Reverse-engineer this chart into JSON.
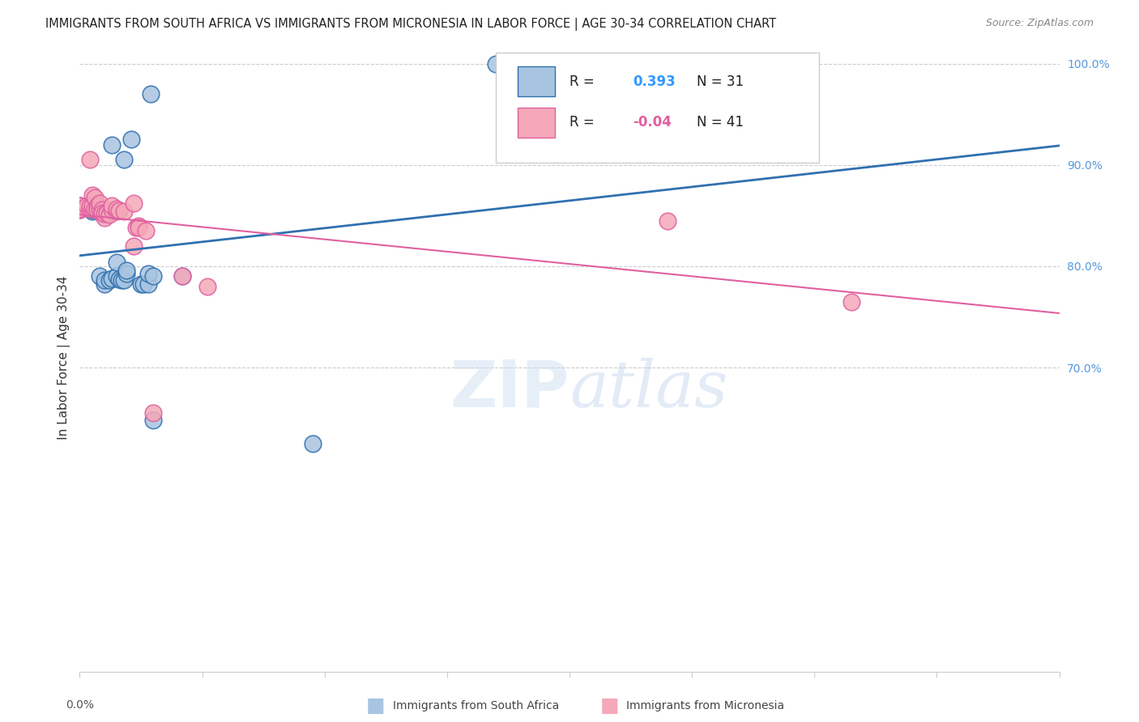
{
  "title": "IMMIGRANTS FROM SOUTH AFRICA VS IMMIGRANTS FROM MICRONESIA IN LABOR FORCE | AGE 30-34 CORRELATION CHART",
  "source": "Source: ZipAtlas.com",
  "ylabel": "In Labor Force | Age 30-34",
  "r_blue": 0.393,
  "n_blue": 31,
  "r_pink": -0.04,
  "n_pink": 41,
  "xlim": [
    0.0,
    0.4
  ],
  "ylim": [
    0.4,
    1.02
  ],
  "blue_color": "#a8c4e0",
  "pink_color": "#f4a8b8",
  "blue_line_color": "#3070b0",
  "pink_line_color": "#e060a0",
  "watermark_zip": "ZIP",
  "watermark_atlas": "atlas",
  "blue_scatter_x": [
    0.0,
    0.0,
    0.005,
    0.005,
    0.007,
    0.007,
    0.008,
    0.01,
    0.01,
    0.012,
    0.013,
    0.013,
    0.015,
    0.015,
    0.016,
    0.017,
    0.018,
    0.018,
    0.019,
    0.019,
    0.021,
    0.025,
    0.026,
    0.028,
    0.028,
    0.029,
    0.03,
    0.03,
    0.042,
    0.095,
    0.17
  ],
  "blue_scatter_y": [
    0.856,
    0.86,
    0.854,
    0.856,
    0.857,
    0.859,
    0.79,
    0.782,
    0.786,
    0.786,
    0.788,
    0.92,
    0.79,
    0.804,
    0.787,
    0.786,
    0.786,
    0.905,
    0.793,
    0.796,
    0.925,
    0.782,
    0.782,
    0.782,
    0.793,
    0.97,
    0.79,
    0.648,
    0.79,
    0.625,
    1.0
  ],
  "pink_scatter_x": [
    0.0,
    0.0,
    0.0,
    0.003,
    0.004,
    0.004,
    0.004,
    0.005,
    0.005,
    0.005,
    0.006,
    0.006,
    0.007,
    0.007,
    0.007,
    0.008,
    0.008,
    0.009,
    0.009,
    0.009,
    0.01,
    0.01,
    0.011,
    0.012,
    0.013,
    0.013,
    0.015,
    0.015,
    0.016,
    0.018,
    0.022,
    0.022,
    0.023,
    0.024,
    0.024,
    0.027,
    0.03,
    0.042,
    0.052,
    0.24,
    0.315
  ],
  "pink_scatter_y": [
    0.856,
    0.86,
    0.857,
    0.86,
    0.857,
    0.86,
    0.905,
    0.857,
    0.87,
    0.86,
    0.857,
    0.868,
    0.857,
    0.86,
    0.856,
    0.857,
    0.862,
    0.852,
    0.856,
    0.853,
    0.848,
    0.852,
    0.853,
    0.851,
    0.856,
    0.86,
    0.854,
    0.857,
    0.855,
    0.854,
    0.862,
    0.82,
    0.838,
    0.84,
    0.838,
    0.835,
    0.655,
    0.79,
    0.78,
    0.845,
    0.765
  ],
  "legend_label_blue": "Immigrants from South Africa",
  "legend_label_pink": "Immigrants from Micronesia",
  "grid_color": "#cccccc",
  "right_ytick_labels": [
    "100.0%",
    "90.0%",
    "80.0%",
    "70.0%"
  ],
  "right_ytick_values": [
    1.0,
    0.9,
    0.8,
    0.7
  ],
  "xtick_values": [
    0.0,
    0.05,
    0.1,
    0.15,
    0.2,
    0.25,
    0.3,
    0.35,
    0.4
  ]
}
